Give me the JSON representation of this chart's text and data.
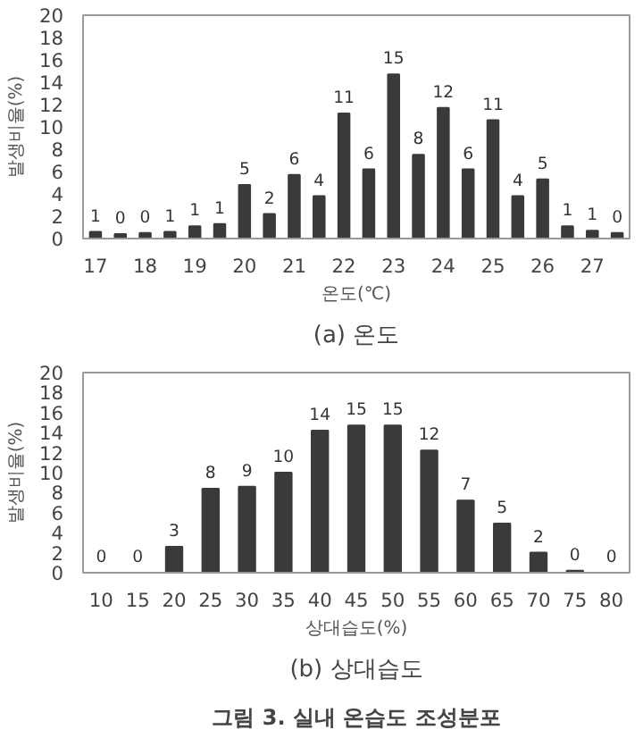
{
  "chart_data": [
    {
      "type": "bar",
      "title": "(a) 온도",
      "xlabel": "온도(℃)",
      "ylabel": "발생비율(%)",
      "categories": [
        "17",
        null,
        "18",
        null,
        "19",
        null,
        "20",
        null,
        "21",
        null,
        "22",
        null,
        "23",
        null,
        "24",
        null,
        "25",
        null,
        "26",
        null,
        "27",
        null
      ],
      "values": [
        0.6,
        0.4,
        0.5,
        0.6,
        1.1,
        1.3,
        4.8,
        2.2,
        5.7,
        3.8,
        11.2,
        6.2,
        14.7,
        7.5,
        11.7,
        6.2,
        10.6,
        3.8,
        5.3,
        1.1,
        0.7,
        0.5
      ],
      "value_labels": [
        "1",
        "0",
        "0",
        "1",
        "1",
        "1",
        "5",
        "2",
        "6",
        "4",
        "11",
        "6",
        "15",
        "8",
        "12",
        "6",
        "11",
        "4",
        "5",
        "1",
        "1",
        "0"
      ],
      "color": "#3a3a3a",
      "ylim": [
        0,
        20
      ],
      "yticks": [
        0,
        2,
        4,
        6,
        8,
        10,
        12,
        14,
        16,
        18,
        20
      ],
      "grid": false
    },
    {
      "type": "bar",
      "title": "(b) 상대습도",
      "xlabel": "상대습도(%)",
      "ylabel": "발생비율(%)",
      "categories": [
        "10",
        "15",
        "20",
        "25",
        "30",
        "35",
        "40",
        "45",
        "50",
        "55",
        "60",
        "65",
        "70",
        "75",
        "80"
      ],
      "values": [
        0,
        0,
        2.6,
        8.4,
        8.6,
        10,
        14.2,
        14.7,
        14.7,
        12.2,
        7.2,
        4.9,
        2,
        0.2,
        0
      ],
      "value_labels": [
        "0",
        "0",
        "3",
        "8",
        "9",
        "10",
        "14",
        "15",
        "15",
        "12",
        "7",
        "5",
        "2",
        "0",
        "0"
      ],
      "color": "#3a3a3a",
      "ylim": [
        0,
        20
      ],
      "yticks": [
        0,
        2,
        4,
        6,
        8,
        10,
        12,
        14,
        16,
        18,
        20
      ],
      "grid": false,
      "annotations": [
        "그림 3. 실내 온습도 조성분포"
      ]
    }
  ]
}
